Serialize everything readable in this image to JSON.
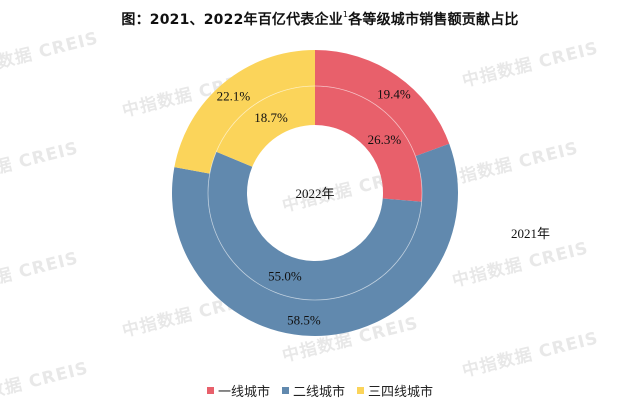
{
  "title": {
    "main": "图：2021、2022年百亿代表企业",
    "superscript": "1",
    "suffix": "各等级城市销售额贡献占比"
  },
  "center_label": "2022年",
  "outer_label": "2021年",
  "watermark": "中指数据  CREIS",
  "colors": {
    "tier1": "#E8606B",
    "tier2": "#6189AE",
    "tier34": "#FBD45A"
  },
  "legend": [
    {
      "label": "一线城市",
      "color": "#E8606B"
    },
    {
      "label": "二线城市",
      "color": "#6189AE"
    },
    {
      "label": "三四线城市",
      "color": "#FBD45A"
    }
  ],
  "chart_data": {
    "type": "pie",
    "subtype": "nested-donut",
    "title": "图：2021、2022年百亿代表企业1各等级城市销售额贡献占比",
    "categories": [
      "一线城市",
      "二线城市",
      "三四线城市"
    ],
    "series": [
      {
        "name": "2021年",
        "ring": "outer",
        "values": [
          19.4,
          58.5,
          22.1
        ],
        "labels": [
          "19.4%",
          "58.5%",
          "22.1%"
        ]
      },
      {
        "name": "2022年",
        "ring": "inner",
        "values": [
          26.3,
          55.0,
          18.7
        ],
        "labels": [
          "26.3%",
          "55.0%",
          "18.7%"
        ]
      }
    ],
    "unit": "%",
    "start_angle": "12 o'clock, clockwise",
    "legend_position": "bottom"
  }
}
